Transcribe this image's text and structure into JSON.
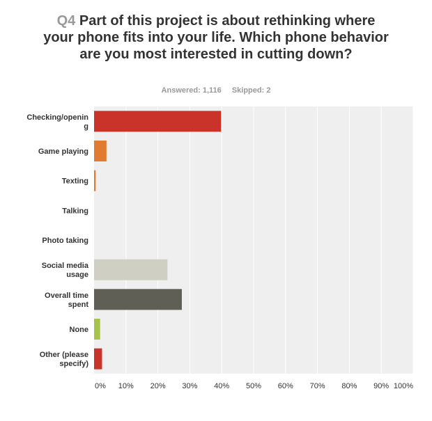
{
  "header": {
    "question_number": "Q4",
    "question_text": "Part of this project is about rethinking where your phone fits into your life. Which phone behavior are you most interested in cutting down?",
    "answered": "Answered: 1,116",
    "skipped": "Skipped: 2"
  },
  "chart_data": {
    "type": "bar",
    "orientation": "horizontal",
    "categories": [
      [
        "Checking/openin",
        "g"
      ],
      [
        "Game playing"
      ],
      [
        "Texting"
      ],
      [
        "Talking"
      ],
      [
        "Photo taking"
      ],
      [
        "Social media",
        "usage"
      ],
      [
        "Overall time",
        "spent"
      ],
      [
        "None"
      ],
      [
        "Other (please",
        "specify)"
      ]
    ],
    "values": [
      39.8,
      3.9,
      0.5,
      0.0,
      0.0,
      23.0,
      27.5,
      1.9,
      2.5
    ],
    "colors": [
      "#c9332a",
      "#e07c32",
      "#e07c32",
      "#c9c9c9",
      "#c9c9c9",
      "#cfcfc4",
      "#5f5f55",
      "#a6c44a",
      "#c9332a"
    ],
    "xlim": [
      0,
      100
    ],
    "xticks": [
      "0%",
      "10%",
      "20%",
      "30%",
      "40%",
      "50%",
      "60%",
      "70%",
      "80%",
      "90%",
      "100%"
    ],
    "grid": true,
    "plot_background": "#efefef",
    "grid_color": "#ffffff"
  }
}
